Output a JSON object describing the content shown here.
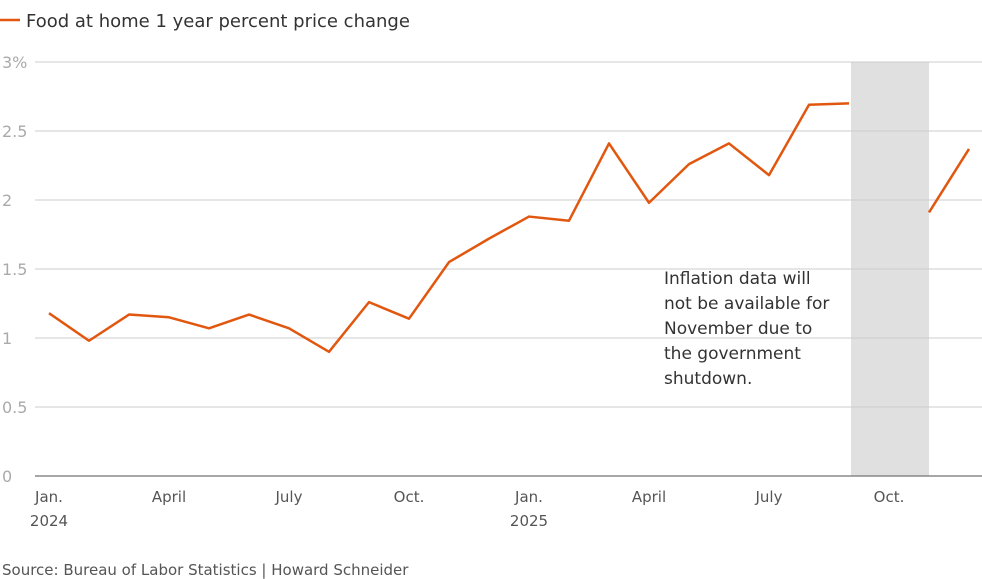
{
  "chart_data": {
    "type": "line",
    "title": "",
    "xlabel": "",
    "ylabel": "",
    "ylim": [
      0,
      3
    ],
    "yticks": [
      {
        "value": 0,
        "label": "0"
      },
      {
        "value": 0.5,
        "label": "0.5"
      },
      {
        "value": 1,
        "label": "1"
      },
      {
        "value": 1.5,
        "label": "1.5"
      },
      {
        "value": 2,
        "label": "2"
      },
      {
        "value": 2.5,
        "label": "2.5"
      },
      {
        "value": 3,
        "label": "3%"
      }
    ],
    "xticks": [
      {
        "index": 0,
        "label": "Jan.",
        "sub": "2024"
      },
      {
        "index": 3,
        "label": "April",
        "sub": ""
      },
      {
        "index": 6,
        "label": "July",
        "sub": ""
      },
      {
        "index": 9,
        "label": "Oct.",
        "sub": ""
      },
      {
        "index": 12,
        "label": "Jan.",
        "sub": "2025"
      },
      {
        "index": 15,
        "label": "April",
        "sub": ""
      },
      {
        "index": 18,
        "label": "July",
        "sub": ""
      },
      {
        "index": 21,
        "label": "Oct.",
        "sub": ""
      }
    ],
    "x": [
      "2024-01",
      "2024-02",
      "2024-03",
      "2024-04",
      "2024-05",
      "2024-06",
      "2024-07",
      "2024-08",
      "2024-09",
      "2024-10",
      "2024-11",
      "2024-12",
      "2025-01",
      "2025-02",
      "2025-03",
      "2025-04",
      "2025-05",
      "2025-06",
      "2025-07",
      "2025-08",
      "2025-09",
      "2025-10",
      "2025-11",
      "2025-12"
    ],
    "series": [
      {
        "name": "Food at home 1 year percent price change",
        "color": "#e2570f",
        "values": [
          1.18,
          0.98,
          1.17,
          1.15,
          1.07,
          1.17,
          1.07,
          0.9,
          1.26,
          1.14,
          1.55,
          1.72,
          1.88,
          1.85,
          2.41,
          1.98,
          2.26,
          2.41,
          2.18,
          2.69,
          2.7,
          null,
          1.91,
          2.37
        ]
      }
    ],
    "shaded_region": {
      "from_index": 20,
      "to_index": 22,
      "color": "#e0e0e0"
    },
    "annotation": [
      "Inflation data will",
      "not be available for",
      "November due to",
      "the government",
      "shutdown."
    ],
    "legend_position": "top-left",
    "grid": true
  },
  "source": "Source: Bureau of Labor Statistics | Howard Schneider"
}
